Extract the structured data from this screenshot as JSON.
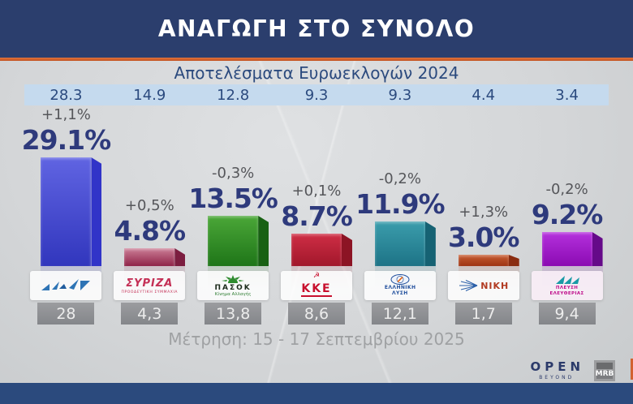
{
  "header": {
    "title": "ΑΝΑΓΩΓΗ ΣΤΟ ΣΥΝΟΛΟ",
    "subtitle": "Αποτελέσματα Ευρωεκλογών 2024"
  },
  "footer": {
    "survey_note": "Μέτρηση: 15 - 17 Σεπτεμβρίου 2025",
    "channel": "OPEN",
    "channel_sub": "BEYOND",
    "pollster": "MRB"
  },
  "colors": {
    "header_bg": "#2b3e6d",
    "accent_orange": "#d2612f",
    "euro_band_bg": "#c5daee",
    "percentage_navy": "#2e3a7c",
    "change_grey": "#55565a",
    "value_box_grey": "#8d8e90",
    "bottom_bar_navy": "#2b4a7d"
  },
  "chart_data": {
    "type": "bar",
    "title": "ΑΝΑΓΩΓΗ ΣΤΟ ΣΥΝΟΛΟ",
    "subtitle": "Αποτελέσματα Ευρωεκλογών 2024",
    "note": "Μέτρηση: 15 - 17 Σεπτεμβρίου 2025",
    "unit": "%",
    "ylim": [
      0,
      30
    ],
    "grid": false,
    "series": [
      {
        "party": "ΝΔ",
        "euro2024": "28.3",
        "change_label": "+1,1%",
        "value_label": "29.1%",
        "value": 29.1,
        "prev_label": "28",
        "bar_top": "#6064e2",
        "bar_bottom": "#3136bd",
        "bar_side": "#3134c8"
      },
      {
        "party": "ΣΥΡΙΖΑ",
        "logo_text": "ΣΥΡΙΖΑ",
        "logo_sub": "ΠΡΟΟΔΕΥΤΙΚΗ ΣΥΜΜΑΧΙΑ",
        "euro2024": "14.9",
        "change_label": "+0,5%",
        "value_label": "4.8%",
        "value": 4.8,
        "prev_label": "4,3",
        "bar_top": "#cc7f97",
        "bar_bottom": "#8f2348",
        "bar_side": "#7c1e40"
      },
      {
        "party": "ΠΑΣΟΚ",
        "logo_text": "ΠΑΣΟΚ",
        "logo_sub": "Κίνημα Αλλαγής",
        "euro2024": "12.8",
        "change_label": "-0,3%",
        "value_label": "13.5%",
        "value": 13.5,
        "prev_label": "13,8",
        "bar_top": "#4ba738",
        "bar_bottom": "#1e7518",
        "bar_side": "#186113"
      },
      {
        "party": "ΚΚΕ",
        "logo_text": "ΚΚΕ",
        "euro2024": "9.3",
        "change_label": "+0,1%",
        "value_label": "8.7%",
        "value": 8.7,
        "prev_label": "8,6",
        "bar_top": "#cf2e45",
        "bar_bottom": "#a1172b",
        "bar_side": "#8c1424"
      },
      {
        "party": "ΕΛΛΗΝΙΚΗ ΛΥΣΗ",
        "logo_text": "ΕΛΛΗΝΙΚΗ ΛΥΣΗ",
        "euro2024": "9.3",
        "change_label": "-0,2%",
        "value_label": "11.9%",
        "value": 11.9,
        "prev_label": "12,1",
        "bar_top": "#3b9dac",
        "bar_bottom": "#1d7386",
        "bar_side": "#166273"
      },
      {
        "party": "ΝΙΚΗ",
        "logo_text": "ΝΙΚΗ",
        "euro2024": "4.4",
        "change_label": "+1,3%",
        "value_label": "3.0%",
        "value": 3.0,
        "prev_label": "1,7",
        "bar_top": "#c75c31",
        "bar_bottom": "#9e3413",
        "bar_side": "#8a2c10"
      },
      {
        "party": "ΠΛΕΥΣΗ ΕΛΕΥΘΕΡΙΑΣ",
        "logo_text": "ΠΛΕΥΣΗ ΕΛΕΥΘΕΡΙΑΣ",
        "euro2024": "3.4",
        "change_label": "-0,2%",
        "value_label": "9.2%",
        "value": 9.2,
        "prev_label": "9,4",
        "bar_top": "#b531dd",
        "bar_bottom": "#8b0ab2",
        "bar_side": "#650a89"
      }
    ]
  }
}
